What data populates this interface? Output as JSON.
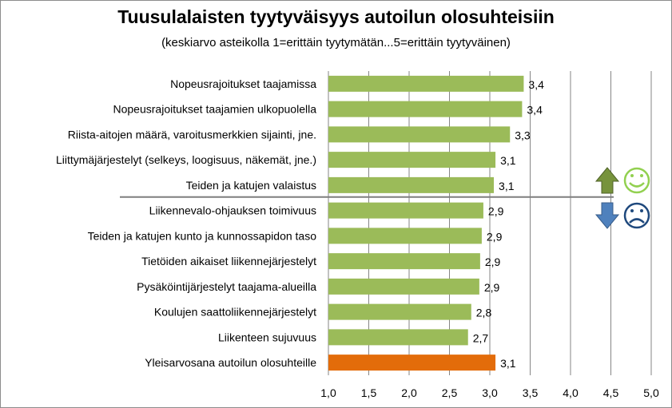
{
  "chart_data": {
    "type": "bar",
    "orientation": "horizontal",
    "title": "Tuusulalaisten tyytyväisyys autoilun olosuhteisiin",
    "subtitle": "(keskiarvo asteikolla 1=erittäin tyytymätän...5=erittäin tyytyväinen)",
    "categories": [
      "Nopeusrajoitukset taajamissa",
      "Nopeusrajoitukset taajamien ulkopuolella",
      "Riista-aitojen määrä, varoitusmerkkien sijainti, jne.",
      "Liittymäjärjestelyt (selkeys, loogisuus, näkemät, jne.)",
      "Teiden ja katujen valaistus",
      "Liikennevalo-ohjauksen toimivuus",
      "Teiden ja katujen kunto ja kunnossapidon taso",
      "Tietöiden aikaiset liikennejärjestelyt",
      "Pysäköintijärjestelyt taajama-alueilla",
      "Koulujen saattoliikennejärjestelyt",
      "Liikenteen sujuvuus",
      "Yleisarvosana autoilun olosuhteille"
    ],
    "values": [
      3.42,
      3.4,
      3.25,
      3.07,
      3.05,
      2.92,
      2.9,
      2.88,
      2.87,
      2.77,
      2.73,
      3.07
    ],
    "value_labels": [
      "3,4",
      "3,4",
      "3,3",
      "3,1",
      "3,1",
      "2,9",
      "2,9",
      "2,9",
      "2,9",
      "2,8",
      "2,7",
      "3,1"
    ],
    "bar_colors": [
      "#9bbb59",
      "#9bbb59",
      "#9bbb59",
      "#9bbb59",
      "#9bbb59",
      "#9bbb59",
      "#9bbb59",
      "#9bbb59",
      "#9bbb59",
      "#9bbb59",
      "#9bbb59",
      "#e36c0a"
    ],
    "xlim": [
      1.0,
      5.0
    ],
    "xticks": [
      1.0,
      1.5,
      2.0,
      2.5,
      3.0,
      3.5,
      4.0,
      4.5,
      5.0
    ],
    "xtick_labels": [
      "1,0",
      "1,5",
      "2,0",
      "2,5",
      "3,0",
      "3,5",
      "4,0",
      "4,5",
      "5,0"
    ],
    "grid": "vertical",
    "separator_after_category_index": 4,
    "markers": {
      "above": {
        "icons": [
          "arrow-up-icon",
          "smiley-happy-icon"
        ],
        "colors": [
          "#77933c",
          "#92d050"
        ]
      },
      "below": {
        "icons": [
          "arrow-down-icon",
          "smiley-sad-icon"
        ],
        "colors": [
          "#4f81bd",
          "#1f497d"
        ]
      }
    }
  }
}
